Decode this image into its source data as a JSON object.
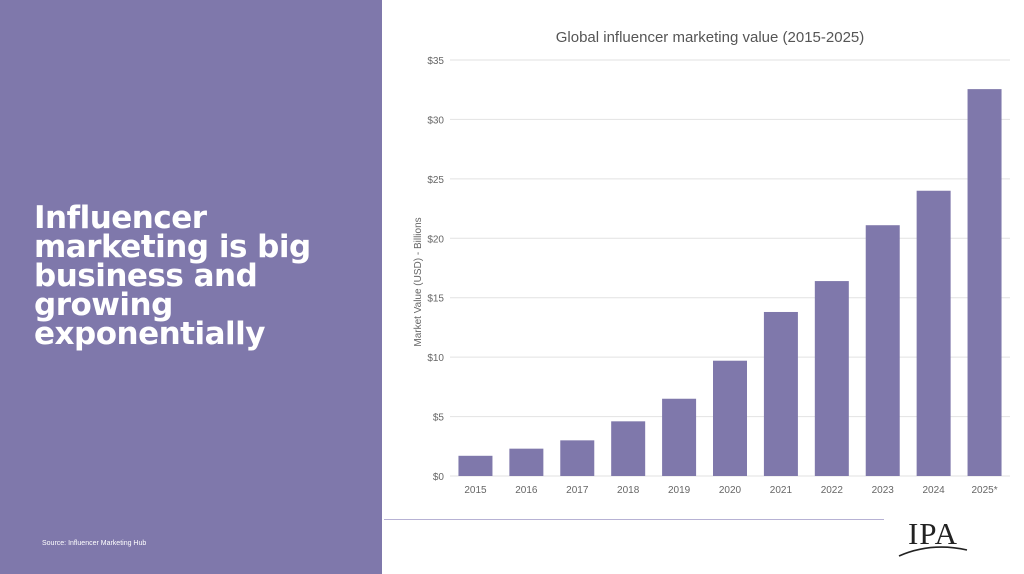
{
  "slide": {
    "headline": "Influencer marketing is big business and growing exponentially",
    "source": "Source: Influencer Marketing Hub",
    "logo_text": "IPA"
  },
  "colors": {
    "panel": "#7f78ab",
    "bar": "#7f78ab",
    "grid": "#e2e2e2",
    "text": "#666666"
  },
  "chart_data": {
    "type": "bar",
    "title": "Global influencer marketing value (2015-2025)",
    "ylabel": "Market Value (USD) - Billions",
    "xlabel": "",
    "categories": [
      "2015",
      "2016",
      "2017",
      "2018",
      "2019",
      "2020",
      "2021",
      "2022",
      "2023",
      "2024",
      "2025*"
    ],
    "values": [
      1.7,
      2.3,
      3.0,
      4.6,
      6.5,
      9.7,
      13.8,
      16.4,
      21.1,
      24.0,
      32.55
    ],
    "ylim": [
      0,
      35
    ],
    "yticks": [
      0,
      5,
      10,
      15,
      20,
      25,
      30,
      35
    ],
    "ytick_labels": [
      "$0",
      "$5",
      "$10",
      "$15",
      "$20",
      "$25",
      "$30",
      "$35"
    ],
    "grid": true,
    "legend": "none"
  }
}
